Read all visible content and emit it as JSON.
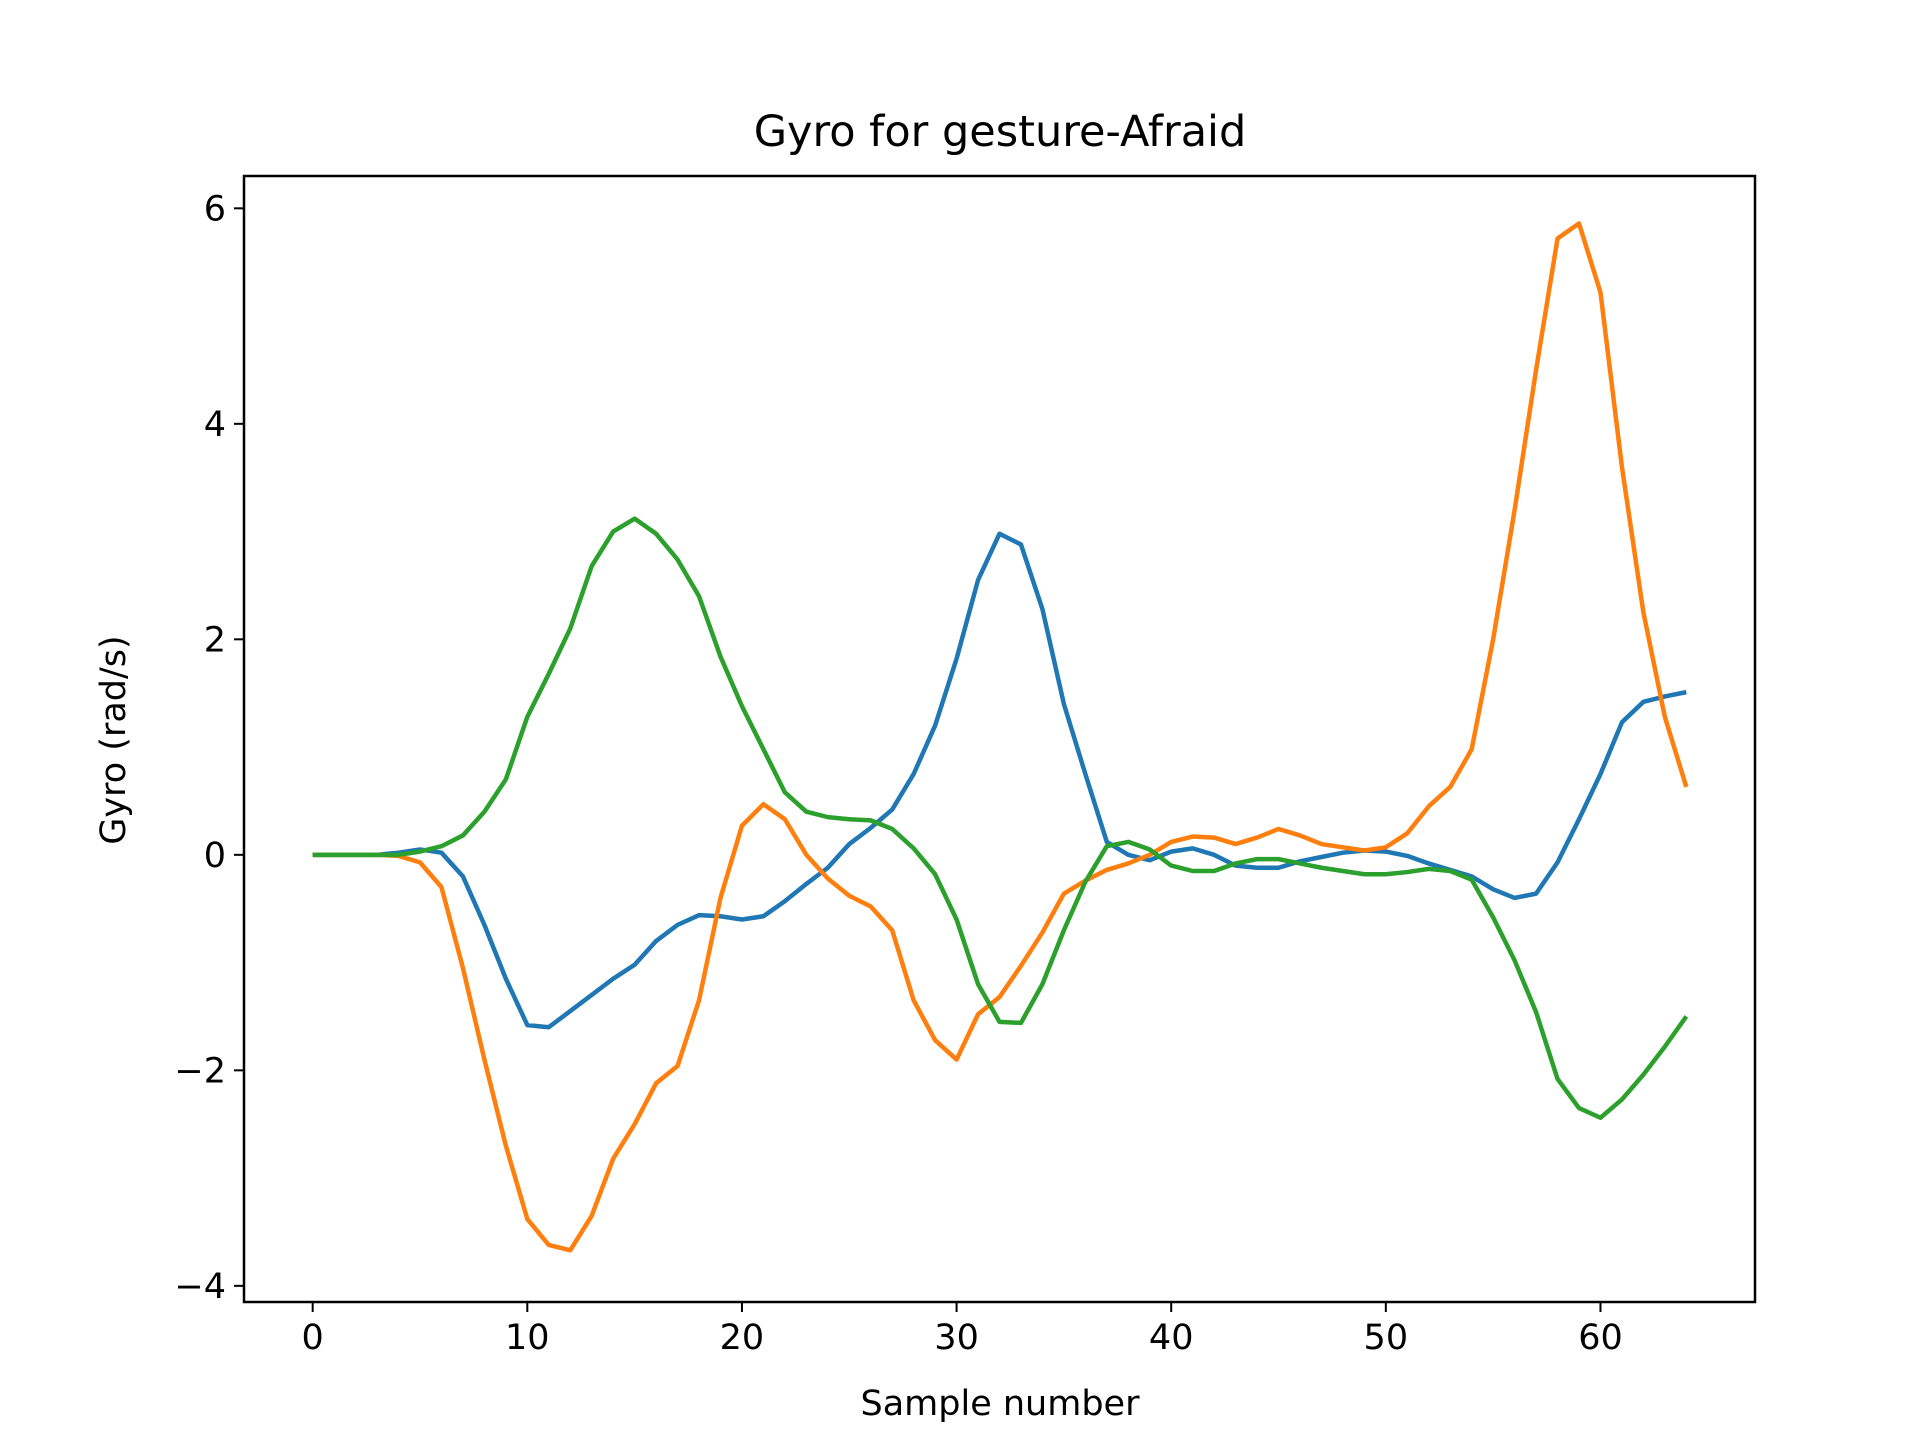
{
  "chart_data": {
    "type": "line",
    "title": "Gyro for gesture-Afraid",
    "xlabel": "Sample number",
    "ylabel": "Gyro  (rad/s)",
    "xlim": [
      -3.2,
      67.2
    ],
    "ylim": [
      -4.15,
      6.3
    ],
    "xticks": [
      0,
      10,
      20,
      30,
      40,
      50,
      60
    ],
    "xtick_labels": [
      "0",
      "10",
      "20",
      "30",
      "40",
      "50",
      "60"
    ],
    "yticks": [
      -4,
      -2,
      0,
      2,
      4,
      6
    ],
    "ytick_labels": [
      "−4",
      "−2",
      "0",
      "2",
      "4",
      "6"
    ],
    "grid": false,
    "legend": false,
    "x": [
      0,
      1,
      2,
      3,
      4,
      5,
      6,
      7,
      8,
      9,
      10,
      11,
      12,
      13,
      14,
      15,
      16,
      17,
      18,
      19,
      20,
      21,
      22,
      23,
      24,
      25,
      26,
      27,
      28,
      29,
      30,
      31,
      32,
      33,
      34,
      35,
      36,
      37,
      38,
      39,
      40,
      41,
      42,
      43,
      44,
      45,
      46,
      47,
      48,
      49,
      50,
      51,
      52,
      53,
      54,
      55,
      56,
      57,
      58,
      59,
      60,
      61,
      62,
      63,
      64
    ],
    "series": [
      {
        "color": "#1f77b4",
        "values": [
          0.0,
          0.0,
          0.0,
          0.0,
          0.02,
          0.05,
          0.02,
          -0.2,
          -0.65,
          -1.15,
          -1.58,
          -1.6,
          -1.45,
          -1.3,
          -1.15,
          -1.02,
          -0.8,
          -0.65,
          -0.56,
          -0.57,
          -0.6,
          -0.57,
          -0.43,
          -0.27,
          -0.12,
          0.1,
          0.25,
          0.42,
          0.75,
          1.2,
          1.82,
          2.55,
          2.98,
          2.88,
          2.28,
          1.4,
          0.75,
          0.12,
          0.0,
          -0.05,
          0.03,
          0.06,
          0.0,
          -0.1,
          -0.12,
          -0.12,
          -0.06,
          -0.02,
          0.02,
          0.04,
          0.03,
          -0.01,
          -0.08,
          -0.14,
          -0.2,
          -0.32,
          -0.4,
          -0.36,
          -0.07,
          0.33,
          0.75,
          1.23,
          1.42,
          1.47,
          1.51
        ]
      },
      {
        "color": "#ff7f0e",
        "values": [
          0.0,
          0.0,
          0.0,
          0.0,
          -0.01,
          -0.07,
          -0.3,
          -1.05,
          -1.9,
          -2.7,
          -3.38,
          -3.62,
          -3.67,
          -3.35,
          -2.82,
          -2.5,
          -2.12,
          -1.96,
          -1.35,
          -0.4,
          0.27,
          0.47,
          0.33,
          0.0,
          -0.22,
          -0.38,
          -0.48,
          -0.7,
          -1.35,
          -1.72,
          -1.9,
          -1.48,
          -1.32,
          -1.03,
          -0.72,
          -0.36,
          -0.24,
          -0.14,
          -0.08,
          0.0,
          0.12,
          0.17,
          0.16,
          0.1,
          0.16,
          0.24,
          0.18,
          0.1,
          0.07,
          0.04,
          0.07,
          0.2,
          0.45,
          0.63,
          0.98,
          2.0,
          3.2,
          4.5,
          5.72,
          5.86,
          5.22,
          3.6,
          2.25,
          1.28,
          0.63
        ]
      },
      {
        "color": "#2ca02c",
        "values": [
          0.0,
          0.0,
          0.0,
          0.0,
          0.0,
          0.03,
          0.08,
          0.18,
          0.4,
          0.7,
          1.28,
          1.68,
          2.1,
          2.68,
          3.0,
          3.12,
          2.98,
          2.74,
          2.4,
          1.84,
          1.38,
          0.98,
          0.58,
          0.4,
          0.35,
          0.33,
          0.32,
          0.24,
          0.06,
          -0.18,
          -0.6,
          -1.2,
          -1.55,
          -1.56,
          -1.2,
          -0.7,
          -0.25,
          0.08,
          0.12,
          0.05,
          -0.1,
          -0.15,
          -0.15,
          -0.08,
          -0.04,
          -0.04,
          -0.08,
          -0.12,
          -0.15,
          -0.18,
          -0.18,
          -0.16,
          -0.13,
          -0.15,
          -0.23,
          -0.58,
          -0.98,
          -1.46,
          -2.08,
          -2.35,
          -2.44,
          -2.27,
          -2.04,
          -1.78,
          -1.5
        ]
      }
    ]
  }
}
